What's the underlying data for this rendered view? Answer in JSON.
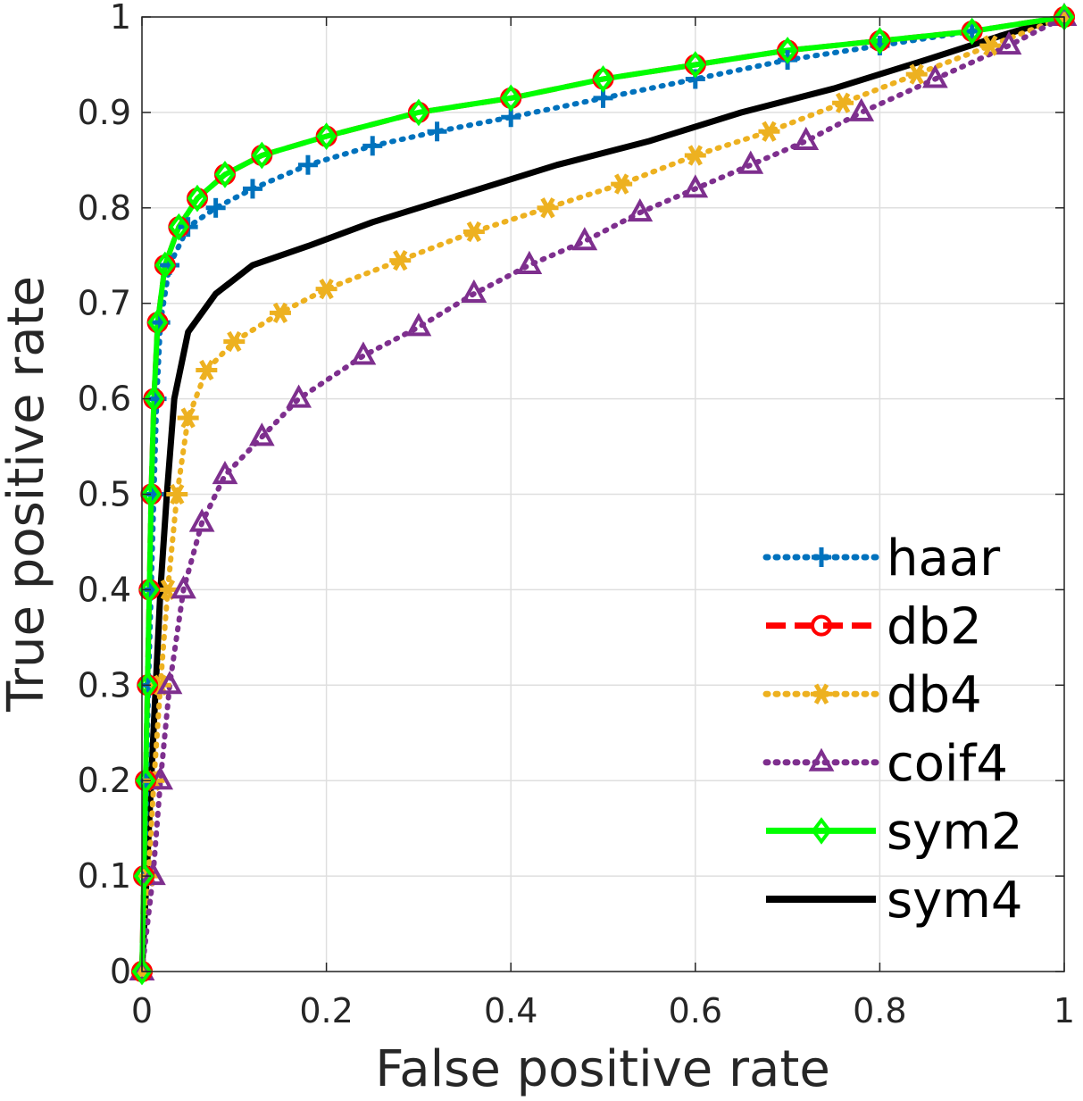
{
  "chart_data": {
    "type": "line",
    "title": "",
    "xlabel": "False positive rate",
    "ylabel": "True positive rate",
    "xlim": [
      0,
      1
    ],
    "ylim": [
      0,
      1
    ],
    "xticks": [
      0,
      0.2,
      0.4,
      0.6,
      0.8,
      1
    ],
    "yticks": [
      0,
      0.1,
      0.2,
      0.3,
      0.4,
      0.5,
      0.6,
      0.7,
      0.8,
      0.9,
      1
    ],
    "xtick_labels": [
      "0",
      "0.2",
      "0.4",
      "0.6",
      "0.8",
      "1"
    ],
    "ytick_labels": [
      "0",
      "0.1",
      "0.2",
      "0.3",
      "0.4",
      "0.5",
      "0.6",
      "0.7",
      "0.8",
      "0.9",
      "1"
    ],
    "grid": true,
    "legend_position": "bottom-right",
    "series": [
      {
        "name": "haar",
        "color": "#0072BD",
        "line_style": "dotted",
        "marker": "plus",
        "points": [
          [
            0,
            0
          ],
          [
            0.003,
            0.1
          ],
          [
            0.005,
            0.2
          ],
          [
            0.007,
            0.3
          ],
          [
            0.01,
            0.4
          ],
          [
            0.013,
            0.5
          ],
          [
            0.016,
            0.6
          ],
          [
            0.02,
            0.68
          ],
          [
            0.03,
            0.74
          ],
          [
            0.05,
            0.78
          ],
          [
            0.08,
            0.8
          ],
          [
            0.12,
            0.82
          ],
          [
            0.18,
            0.845
          ],
          [
            0.25,
            0.865
          ],
          [
            0.32,
            0.88
          ],
          [
            0.4,
            0.895
          ],
          [
            0.5,
            0.915
          ],
          [
            0.6,
            0.935
          ],
          [
            0.7,
            0.955
          ],
          [
            0.8,
            0.97
          ],
          [
            0.9,
            0.985
          ],
          [
            1,
            1
          ]
        ]
      },
      {
        "name": "db2",
        "color": "#FF0000",
        "line_style": "dashed",
        "marker": "circle",
        "points": [
          [
            0,
            0
          ],
          [
            0.002,
            0.1
          ],
          [
            0.004,
            0.2
          ],
          [
            0.006,
            0.3
          ],
          [
            0.008,
            0.4
          ],
          [
            0.01,
            0.5
          ],
          [
            0.013,
            0.6
          ],
          [
            0.017,
            0.68
          ],
          [
            0.025,
            0.74
          ],
          [
            0.04,
            0.78
          ],
          [
            0.06,
            0.81
          ],
          [
            0.09,
            0.835
          ],
          [
            0.13,
            0.855
          ],
          [
            0.2,
            0.875
          ],
          [
            0.3,
            0.9
          ],
          [
            0.4,
            0.915
          ],
          [
            0.5,
            0.935
          ],
          [
            0.6,
            0.95
          ],
          [
            0.7,
            0.965
          ],
          [
            0.8,
            0.975
          ],
          [
            0.9,
            0.985
          ],
          [
            1,
            1
          ]
        ]
      },
      {
        "name": "db4",
        "color": "#EDB120",
        "line_style": "dotted",
        "marker": "asterisk",
        "points": [
          [
            0,
            0
          ],
          [
            0.007,
            0.1
          ],
          [
            0.013,
            0.2
          ],
          [
            0.02,
            0.3
          ],
          [
            0.028,
            0.4
          ],
          [
            0.038,
            0.5
          ],
          [
            0.05,
            0.58
          ],
          [
            0.07,
            0.63
          ],
          [
            0.1,
            0.66
          ],
          [
            0.15,
            0.69
          ],
          [
            0.2,
            0.715
          ],
          [
            0.28,
            0.745
          ],
          [
            0.36,
            0.775
          ],
          [
            0.44,
            0.8
          ],
          [
            0.52,
            0.825
          ],
          [
            0.6,
            0.855
          ],
          [
            0.68,
            0.88
          ],
          [
            0.76,
            0.91
          ],
          [
            0.84,
            0.94
          ],
          [
            0.92,
            0.97
          ],
          [
            1,
            1
          ]
        ]
      },
      {
        "name": "coif4",
        "color": "#7E2F8E",
        "line_style": "dotted",
        "marker": "triangle",
        "points": [
          [
            0,
            0
          ],
          [
            0.012,
            0.1
          ],
          [
            0.02,
            0.2
          ],
          [
            0.03,
            0.3
          ],
          [
            0.045,
            0.4
          ],
          [
            0.065,
            0.47
          ],
          [
            0.09,
            0.52
          ],
          [
            0.13,
            0.56
          ],
          [
            0.17,
            0.6
          ],
          [
            0.24,
            0.645
          ],
          [
            0.3,
            0.675
          ],
          [
            0.36,
            0.71
          ],
          [
            0.42,
            0.74
          ],
          [
            0.48,
            0.765
          ],
          [
            0.54,
            0.795
          ],
          [
            0.6,
            0.82
          ],
          [
            0.66,
            0.845
          ],
          [
            0.72,
            0.87
          ],
          [
            0.78,
            0.9
          ],
          [
            0.86,
            0.935
          ],
          [
            0.94,
            0.97
          ],
          [
            1,
            1
          ]
        ]
      },
      {
        "name": "sym2",
        "color": "#00FF00",
        "line_style": "solid",
        "marker": "diamond",
        "points": [
          [
            0,
            0
          ],
          [
            0.002,
            0.1
          ],
          [
            0.004,
            0.2
          ],
          [
            0.006,
            0.3
          ],
          [
            0.008,
            0.4
          ],
          [
            0.01,
            0.5
          ],
          [
            0.013,
            0.6
          ],
          [
            0.017,
            0.68
          ],
          [
            0.025,
            0.74
          ],
          [
            0.04,
            0.78
          ],
          [
            0.06,
            0.81
          ],
          [
            0.09,
            0.835
          ],
          [
            0.13,
            0.855
          ],
          [
            0.2,
            0.875
          ],
          [
            0.3,
            0.9
          ],
          [
            0.4,
            0.915
          ],
          [
            0.5,
            0.935
          ],
          [
            0.6,
            0.95
          ],
          [
            0.7,
            0.965
          ],
          [
            0.8,
            0.975
          ],
          [
            0.9,
            0.985
          ],
          [
            1,
            1
          ]
        ]
      },
      {
        "name": "sym4",
        "color": "#000000",
        "line_style": "solid",
        "marker": "none",
        "points": [
          [
            0,
            0
          ],
          [
            0.005,
            0.1
          ],
          [
            0.01,
            0.2
          ],
          [
            0.015,
            0.3
          ],
          [
            0.02,
            0.4
          ],
          [
            0.027,
            0.5
          ],
          [
            0.035,
            0.6
          ],
          [
            0.05,
            0.67
          ],
          [
            0.08,
            0.71
          ],
          [
            0.12,
            0.74
          ],
          [
            0.18,
            0.76
          ],
          [
            0.25,
            0.785
          ],
          [
            0.35,
            0.815
          ],
          [
            0.45,
            0.845
          ],
          [
            0.55,
            0.87
          ],
          [
            0.65,
            0.9
          ],
          [
            0.75,
            0.925
          ],
          [
            0.85,
            0.955
          ],
          [
            0.93,
            0.98
          ],
          [
            1,
            1
          ]
        ]
      }
    ]
  }
}
